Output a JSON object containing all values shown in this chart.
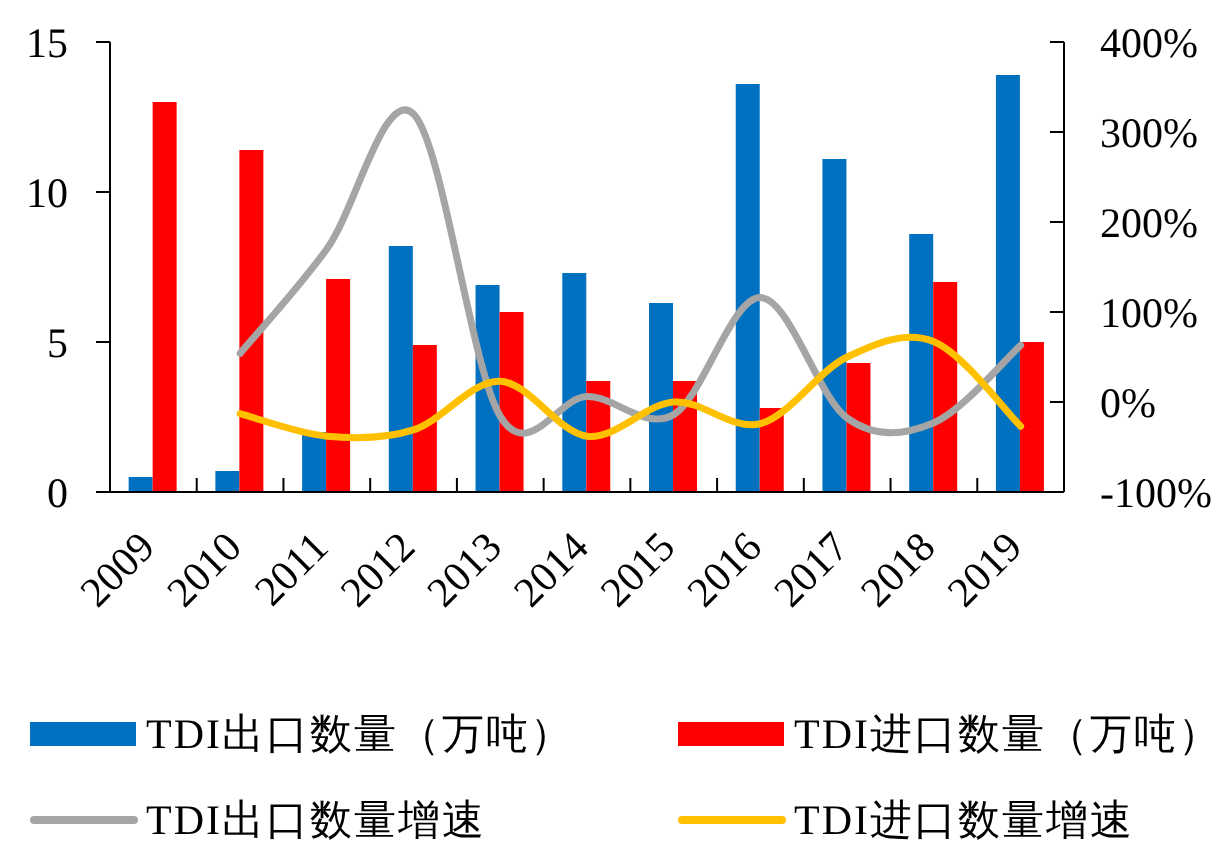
{
  "chart_data": {
    "type": "bar",
    "categories": [
      "2009",
      "2010",
      "2011",
      "2012",
      "2013",
      "2014",
      "2015",
      "2016",
      "2017",
      "2018",
      "2019"
    ],
    "series": [
      {
        "name": "TDI出口数量（万吨）",
        "color": "#0070c0",
        "values": [
          0.5,
          0.7,
          2.0,
          8.2,
          6.9,
          7.3,
          6.3,
          13.6,
          11.1,
          8.6,
          13.9
        ]
      },
      {
        "name": "TDI进口数量（万吨）",
        "color": "#ff0000",
        "values": [
          13.0,
          11.4,
          7.1,
          4.9,
          6.0,
          3.7,
          3.7,
          2.8,
          4.3,
          7.0,
          5.0
        ]
      },
      {
        "name": "TDI出口数量增速",
        "type": "line",
        "axis": "y2",
        "color": "#a5a5a5",
        "values": [
          null,
          54,
          170,
          320,
          -16,
          6,
          -14,
          116,
          -18,
          -23,
          63
        ]
      },
      {
        "name": "TDI进口数量增速",
        "type": "line",
        "axis": "y2",
        "color": "#ffc000",
        "values": [
          null,
          -13,
          -38,
          -31,
          23,
          -38,
          0,
          -24,
          50,
          67,
          -27
        ]
      }
    ],
    "ylim": [
      0,
      15
    ],
    "yticks": [
      0,
      5,
      10,
      15
    ],
    "y2lim": [
      -100,
      400
    ],
    "y2ticks": [
      {
        "value": -100,
        "label": "-100%"
      },
      {
        "value": 0,
        "label": "0%"
      },
      {
        "value": 100,
        "label": "100%"
      },
      {
        "value": 200,
        "label": "200%"
      },
      {
        "value": 300,
        "label": "300%"
      },
      {
        "value": 400,
        "label": "400%"
      }
    ],
    "legend": "bottom",
    "grid": false,
    "marker": "none",
    "line_style": "solid"
  }
}
